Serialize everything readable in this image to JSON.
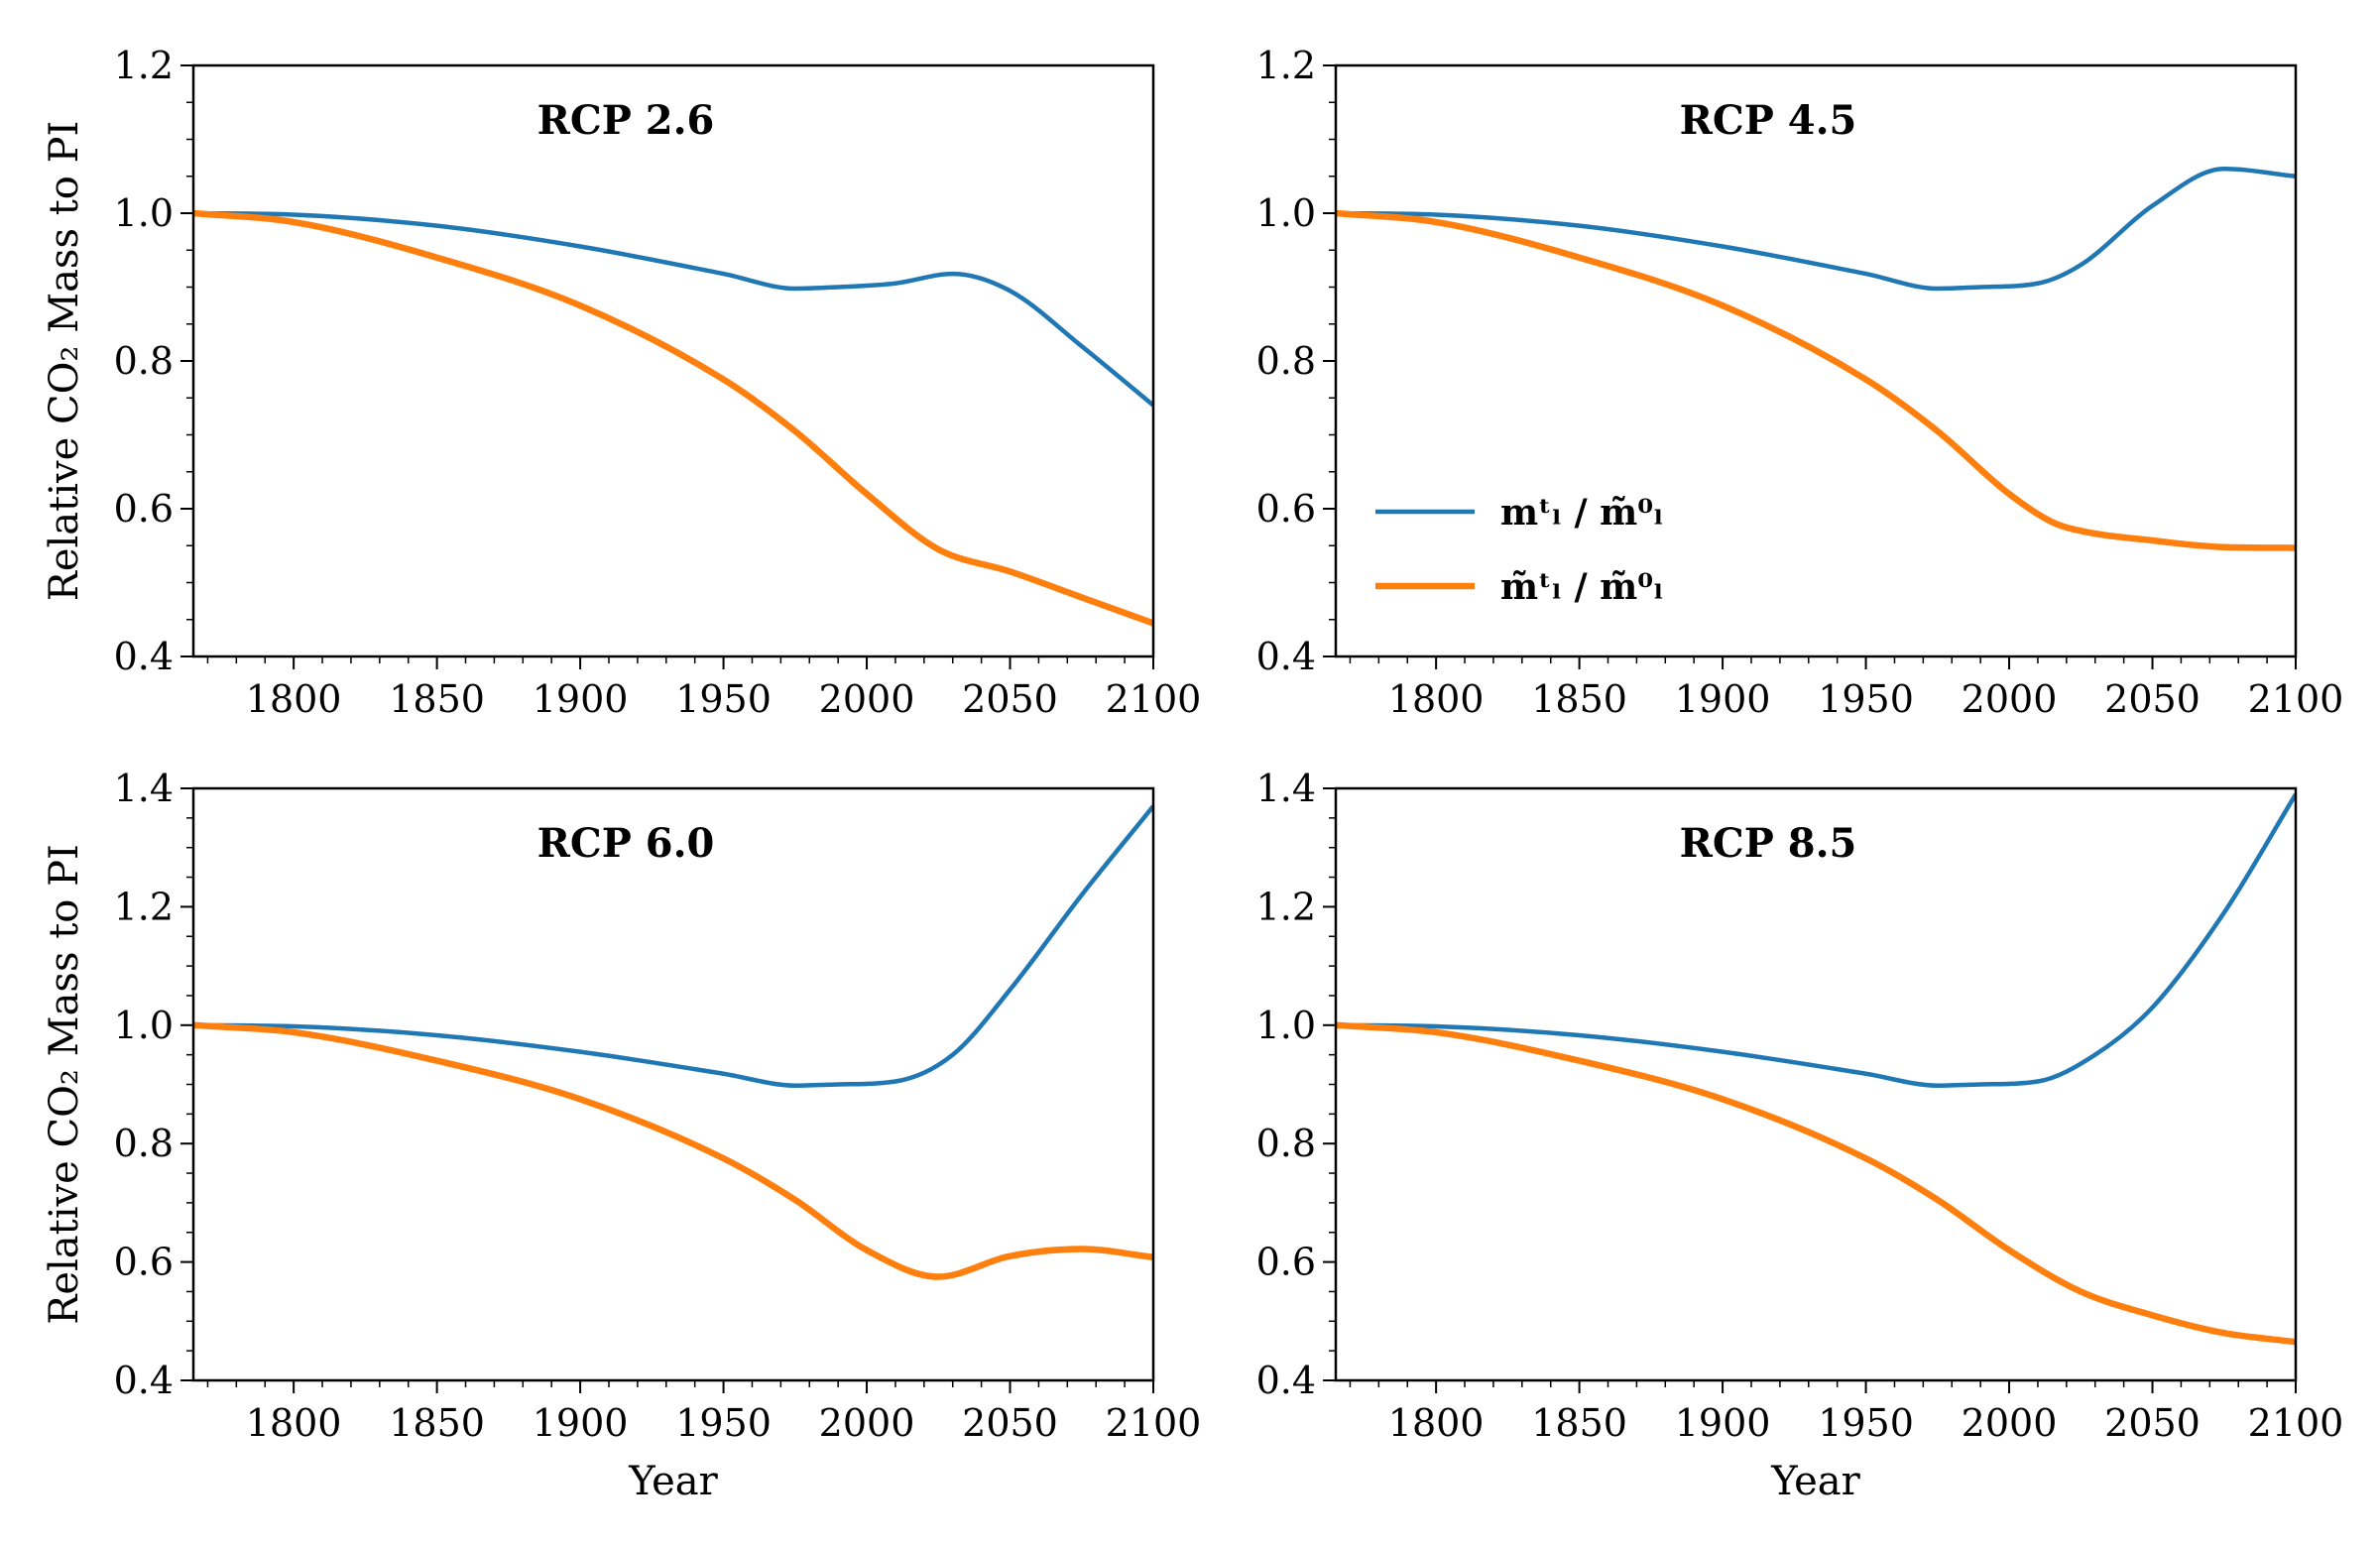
{
  "colors": {
    "blue": "#1f77b4",
    "orange": "#ff7f0e"
  },
  "legend": {
    "items": [
      {
        "series": "s1",
        "label": "mᵗₗ / m̃⁰ₗ"
      },
      {
        "series": "s2",
        "label": "m̃ᵗₗ / m̃⁰ₗ"
      }
    ]
  },
  "chart_data": [
    {
      "type": "line",
      "title": "RCP 2.6",
      "xlabel": "",
      "ylabel": "Relative CO₂ Mass to PI",
      "xlim": [
        1765,
        2100
      ],
      "ylim": [
        0.4,
        1.2
      ],
      "xticks": [
        "1800",
        "1850",
        "1900",
        "1950",
        "2000",
        "2050",
        "2100"
      ],
      "yticks": [
        "0.4",
        "0.6",
        "0.8",
        "1.0",
        "1.2"
      ],
      "grid": false,
      "legend": "none",
      "series": [
        {
          "id": "s1",
          "color": "#1f77b4",
          "x": [
            1765,
            1800,
            1850,
            1900,
            1950,
            1975,
            1990,
            2010,
            2030,
            2050,
            2075,
            2100
          ],
          "y": [
            1.0,
            0.998,
            0.983,
            0.955,
            0.918,
            0.898,
            0.9,
            0.905,
            0.918,
            0.895,
            0.82,
            0.74
          ]
        },
        {
          "id": "s2",
          "color": "#ff7f0e",
          "x": [
            1765,
            1800,
            1850,
            1900,
            1950,
            1975,
            2000,
            2025,
            2050,
            2075,
            2100
          ],
          "y": [
            1.0,
            0.988,
            0.94,
            0.875,
            0.775,
            0.705,
            0.62,
            0.545,
            0.515,
            0.48,
            0.445
          ]
        }
      ]
    },
    {
      "type": "line",
      "title": "RCP 4.5",
      "xlabel": "",
      "ylabel": "",
      "xlim": [
        1765,
        2100
      ],
      "ylim": [
        0.4,
        1.2
      ],
      "xticks": [
        "1800",
        "1850",
        "1900",
        "1950",
        "2000",
        "2050",
        "2100"
      ],
      "yticks": [
        "0.4",
        "0.6",
        "0.8",
        "1.0",
        "1.2"
      ],
      "grid": false,
      "legend": "lower-left",
      "series": [
        {
          "id": "s1",
          "color": "#1f77b4",
          "x": [
            1765,
            1800,
            1850,
            1900,
            1950,
            1975,
            1990,
            2010,
            2025,
            2050,
            2075,
            2100
          ],
          "y": [
            1.0,
            0.998,
            0.983,
            0.955,
            0.918,
            0.898,
            0.9,
            0.905,
            0.93,
            1.01,
            1.06,
            1.05
          ]
        },
        {
          "id": "s2",
          "color": "#ff7f0e",
          "x": [
            1765,
            1800,
            1850,
            1900,
            1950,
            1975,
            2000,
            2015,
            2025,
            2050,
            2075,
            2100
          ],
          "y": [
            1.0,
            0.988,
            0.94,
            0.875,
            0.775,
            0.705,
            0.62,
            0.582,
            0.57,
            0.557,
            0.548,
            0.547
          ]
        }
      ]
    },
    {
      "type": "line",
      "title": "RCP 6.0",
      "xlabel": "Year",
      "ylabel": "Relative CO₂ Mass to PI",
      "xlim": [
        1765,
        2100
      ],
      "ylim": [
        0.4,
        1.4
      ],
      "xticks": [
        "1800",
        "1850",
        "1900",
        "1950",
        "2000",
        "2050",
        "2100"
      ],
      "yticks": [
        "0.4",
        "0.6",
        "0.8",
        "1.0",
        "1.2",
        "1.4"
      ],
      "grid": false,
      "legend": "none",
      "series": [
        {
          "id": "s1",
          "color": "#1f77b4",
          "x": [
            1765,
            1800,
            1850,
            1900,
            1950,
            1975,
            1990,
            2010,
            2030,
            2050,
            2075,
            2100
          ],
          "y": [
            1.0,
            0.998,
            0.983,
            0.955,
            0.918,
            0.898,
            0.9,
            0.905,
            0.95,
            1.06,
            1.22,
            1.37
          ]
        },
        {
          "id": "s2",
          "color": "#ff7f0e",
          "x": [
            1765,
            1800,
            1850,
            1900,
            1950,
            1975,
            2000,
            2025,
            2050,
            2075,
            2100
          ],
          "y": [
            1.0,
            0.988,
            0.94,
            0.875,
            0.775,
            0.705,
            0.62,
            0.575,
            0.61,
            0.622,
            0.608
          ]
        }
      ]
    },
    {
      "type": "line",
      "title": "RCP 8.5",
      "xlabel": "Year",
      "ylabel": "",
      "xlim": [
        1765,
        2100
      ],
      "ylim": [
        0.4,
        1.4
      ],
      "xticks": [
        "1800",
        "1850",
        "1900",
        "1950",
        "2000",
        "2050",
        "2100"
      ],
      "yticks": [
        "0.4",
        "0.6",
        "0.8",
        "1.0",
        "1.2",
        "1.4"
      ],
      "grid": false,
      "legend": "none",
      "series": [
        {
          "id": "s1",
          "color": "#1f77b4",
          "x": [
            1765,
            1800,
            1850,
            1900,
            1950,
            1975,
            1990,
            2010,
            2030,
            2050,
            2075,
            2100
          ],
          "y": [
            1.0,
            0.998,
            0.983,
            0.955,
            0.918,
            0.898,
            0.9,
            0.905,
            0.95,
            1.03,
            1.19,
            1.39
          ]
        },
        {
          "id": "s2",
          "color": "#ff7f0e",
          "x": [
            1765,
            1800,
            1850,
            1900,
            1950,
            1975,
            2000,
            2025,
            2050,
            2075,
            2100
          ],
          "y": [
            1.0,
            0.988,
            0.94,
            0.875,
            0.775,
            0.705,
            0.62,
            0.55,
            0.51,
            0.48,
            0.465
          ]
        }
      ]
    }
  ]
}
